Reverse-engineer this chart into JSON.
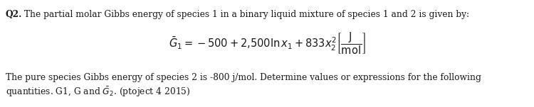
{
  "background_color": "#ffffff",
  "figsize": [
    7.5,
    1.51
  ],
  "dpi": 100,
  "text_color": "#1a1a1a",
  "font_size_main": 8.8,
  "font_size_eq": 10.5,
  "q2_bold": "Q2.",
  "line1_rest": " The partial molar Gibbs energy of species 1 in a binary liquid mixture of species 1 and 2 is given by:",
  "line3": "The pure species Gibbs energy of species 2 is -800 j/mol. Determine values or expressions for the following",
  "line4_pre": "quantities. G1, G and ",
  "line4_suf": ". (ptoject 4 2015)"
}
